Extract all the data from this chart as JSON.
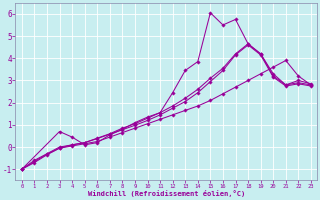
{
  "xlabel": "Windchill (Refroidissement éolien,°C)",
  "background_color": "#c8eef0",
  "grid_color": "#ffffff",
  "line_color": "#990099",
  "spine_color": "#8888aa",
  "xlim": [
    -0.5,
    23.5
  ],
  "ylim": [
    -1.5,
    6.5
  ],
  "xticks": [
    0,
    1,
    2,
    3,
    4,
    5,
    6,
    7,
    8,
    9,
    10,
    11,
    12,
    13,
    14,
    15,
    16,
    17,
    18,
    19,
    20,
    21,
    22,
    23
  ],
  "yticks": [
    -1,
    0,
    1,
    2,
    3,
    4,
    5,
    6
  ],
  "series": [
    {
      "x": [
        0,
        1,
        2,
        3,
        4,
        5,
        6,
        7,
        8,
        9,
        10,
        11,
        12,
        13,
        14,
        15,
        16,
        17,
        18,
        19,
        20,
        21,
        22,
        23
      ],
      "y": [
        -1.0,
        -0.7,
        -0.35,
        -0.05,
        0.05,
        0.15,
        0.25,
        0.45,
        0.65,
        0.85,
        1.05,
        1.25,
        1.45,
        1.65,
        1.85,
        2.1,
        2.4,
        2.7,
        3.0,
        3.3,
        3.6,
        3.9,
        3.2,
        2.8
      ]
    },
    {
      "x": [
        0,
        1,
        2,
        3,
        4,
        5,
        6,
        7,
        8,
        9,
        10,
        11,
        12,
        13,
        14,
        15,
        16,
        17,
        18,
        19,
        20,
        21,
        22,
        23
      ],
      "y": [
        -1.0,
        -0.6,
        -0.3,
        0.0,
        0.1,
        0.2,
        0.4,
        0.6,
        0.85,
        1.05,
        1.3,
        1.55,
        1.85,
        2.2,
        2.6,
        3.1,
        3.55,
        4.2,
        4.65,
        4.2,
        3.3,
        2.8,
        2.9,
        2.8
      ]
    },
    {
      "x": [
        0,
        3,
        4,
        5,
        6,
        7,
        8,
        9,
        10,
        11,
        12,
        13,
        14,
        15,
        16,
        17,
        18,
        19,
        20,
        21,
        22,
        23
      ],
      "y": [
        -1.0,
        0.7,
        0.45,
        0.1,
        0.2,
        0.55,
        0.8,
        1.1,
        1.35,
        1.55,
        2.45,
        3.45,
        3.85,
        6.05,
        5.5,
        5.75,
        4.65,
        4.2,
        3.2,
        2.8,
        3.0,
        2.85
      ]
    },
    {
      "x": [
        0,
        1,
        2,
        3,
        4,
        5,
        6,
        7,
        8,
        9,
        10,
        11,
        12,
        13,
        14,
        15,
        16,
        17,
        18,
        19,
        20,
        21,
        22,
        23
      ],
      "y": [
        -1.0,
        -0.65,
        -0.32,
        -0.05,
        0.1,
        0.2,
        0.38,
        0.58,
        0.78,
        0.98,
        1.2,
        1.45,
        1.75,
        2.05,
        2.45,
        2.95,
        3.45,
        4.15,
        4.6,
        4.15,
        3.15,
        2.75,
        2.85,
        2.75
      ]
    }
  ]
}
